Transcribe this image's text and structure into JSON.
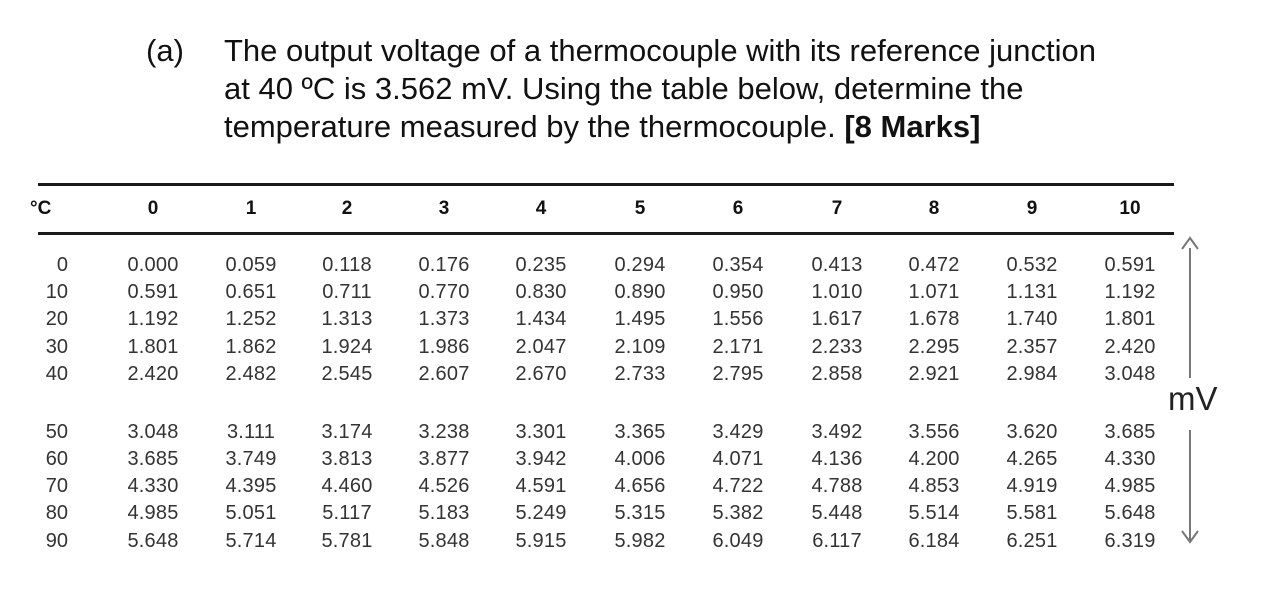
{
  "question": {
    "label": "(a)",
    "line1": "The output voltage of a thermocouple with its reference junction",
    "line2": "at 40 ºC is 3.562 mV. Using the table below, determine the",
    "line3_text": "temperature measured by the thermocouple. ",
    "marks": "[8 Marks]"
  },
  "table": {
    "corner": "°C",
    "columns": [
      "0",
      "1",
      "2",
      "3",
      "4",
      "5",
      "6",
      "7",
      "8",
      "9",
      "10"
    ],
    "rows": [
      {
        "t": "0",
        "v": [
          "0.000",
          "0.059",
          "0.118",
          "0.176",
          "0.235",
          "0.294",
          "0.354",
          "0.413",
          "0.472",
          "0.532",
          "0.591"
        ]
      },
      {
        "t": "10",
        "v": [
          "0.591",
          "0.651",
          "0.711",
          "0.770",
          "0.830",
          "0.890",
          "0.950",
          "1.010",
          "1.071",
          "1.131",
          "1.192"
        ]
      },
      {
        "t": "20",
        "v": [
          "1.192",
          "1.252",
          "1.313",
          "1.373",
          "1.434",
          "1.495",
          "1.556",
          "1.617",
          "1.678",
          "1.740",
          "1.801"
        ]
      },
      {
        "t": "30",
        "v": [
          "1.801",
          "1.862",
          "1.924",
          "1.986",
          "2.047",
          "2.109",
          "2.171",
          "2.233",
          "2.295",
          "2.357",
          "2.420"
        ]
      },
      {
        "t": "40",
        "v": [
          "2.420",
          "2.482",
          "2.545",
          "2.607",
          "2.670",
          "2.733",
          "2.795",
          "2.858",
          "2.921",
          "2.984",
          "3.048"
        ]
      },
      {
        "t": "50",
        "v": [
          "3.048",
          "3.111",
          "3.174",
          "3.238",
          "3.301",
          "3.365",
          "3.429",
          "3.492",
          "3.556",
          "3.620",
          "3.685"
        ]
      },
      {
        "t": "60",
        "v": [
          "3.685",
          "3.749",
          "3.813",
          "3.877",
          "3.942",
          "4.006",
          "4.071",
          "4.136",
          "4.200",
          "4.265",
          "4.330"
        ]
      },
      {
        "t": "70",
        "v": [
          "4.330",
          "4.395",
          "4.460",
          "4.526",
          "4.591",
          "4.656",
          "4.722",
          "4.788",
          "4.853",
          "4.919",
          "4.985"
        ]
      },
      {
        "t": "80",
        "v": [
          "4.985",
          "5.051",
          "5.117",
          "5.183",
          "5.249",
          "5.315",
          "5.382",
          "5.448",
          "5.514",
          "5.581",
          "5.648"
        ]
      },
      {
        "t": "90",
        "v": [
          "5.648",
          "5.714",
          "5.781",
          "5.848",
          "5.915",
          "5.982",
          "6.049",
          "6.117",
          "6.184",
          "6.251",
          "6.319"
        ]
      }
    ],
    "unit": "mV"
  }
}
